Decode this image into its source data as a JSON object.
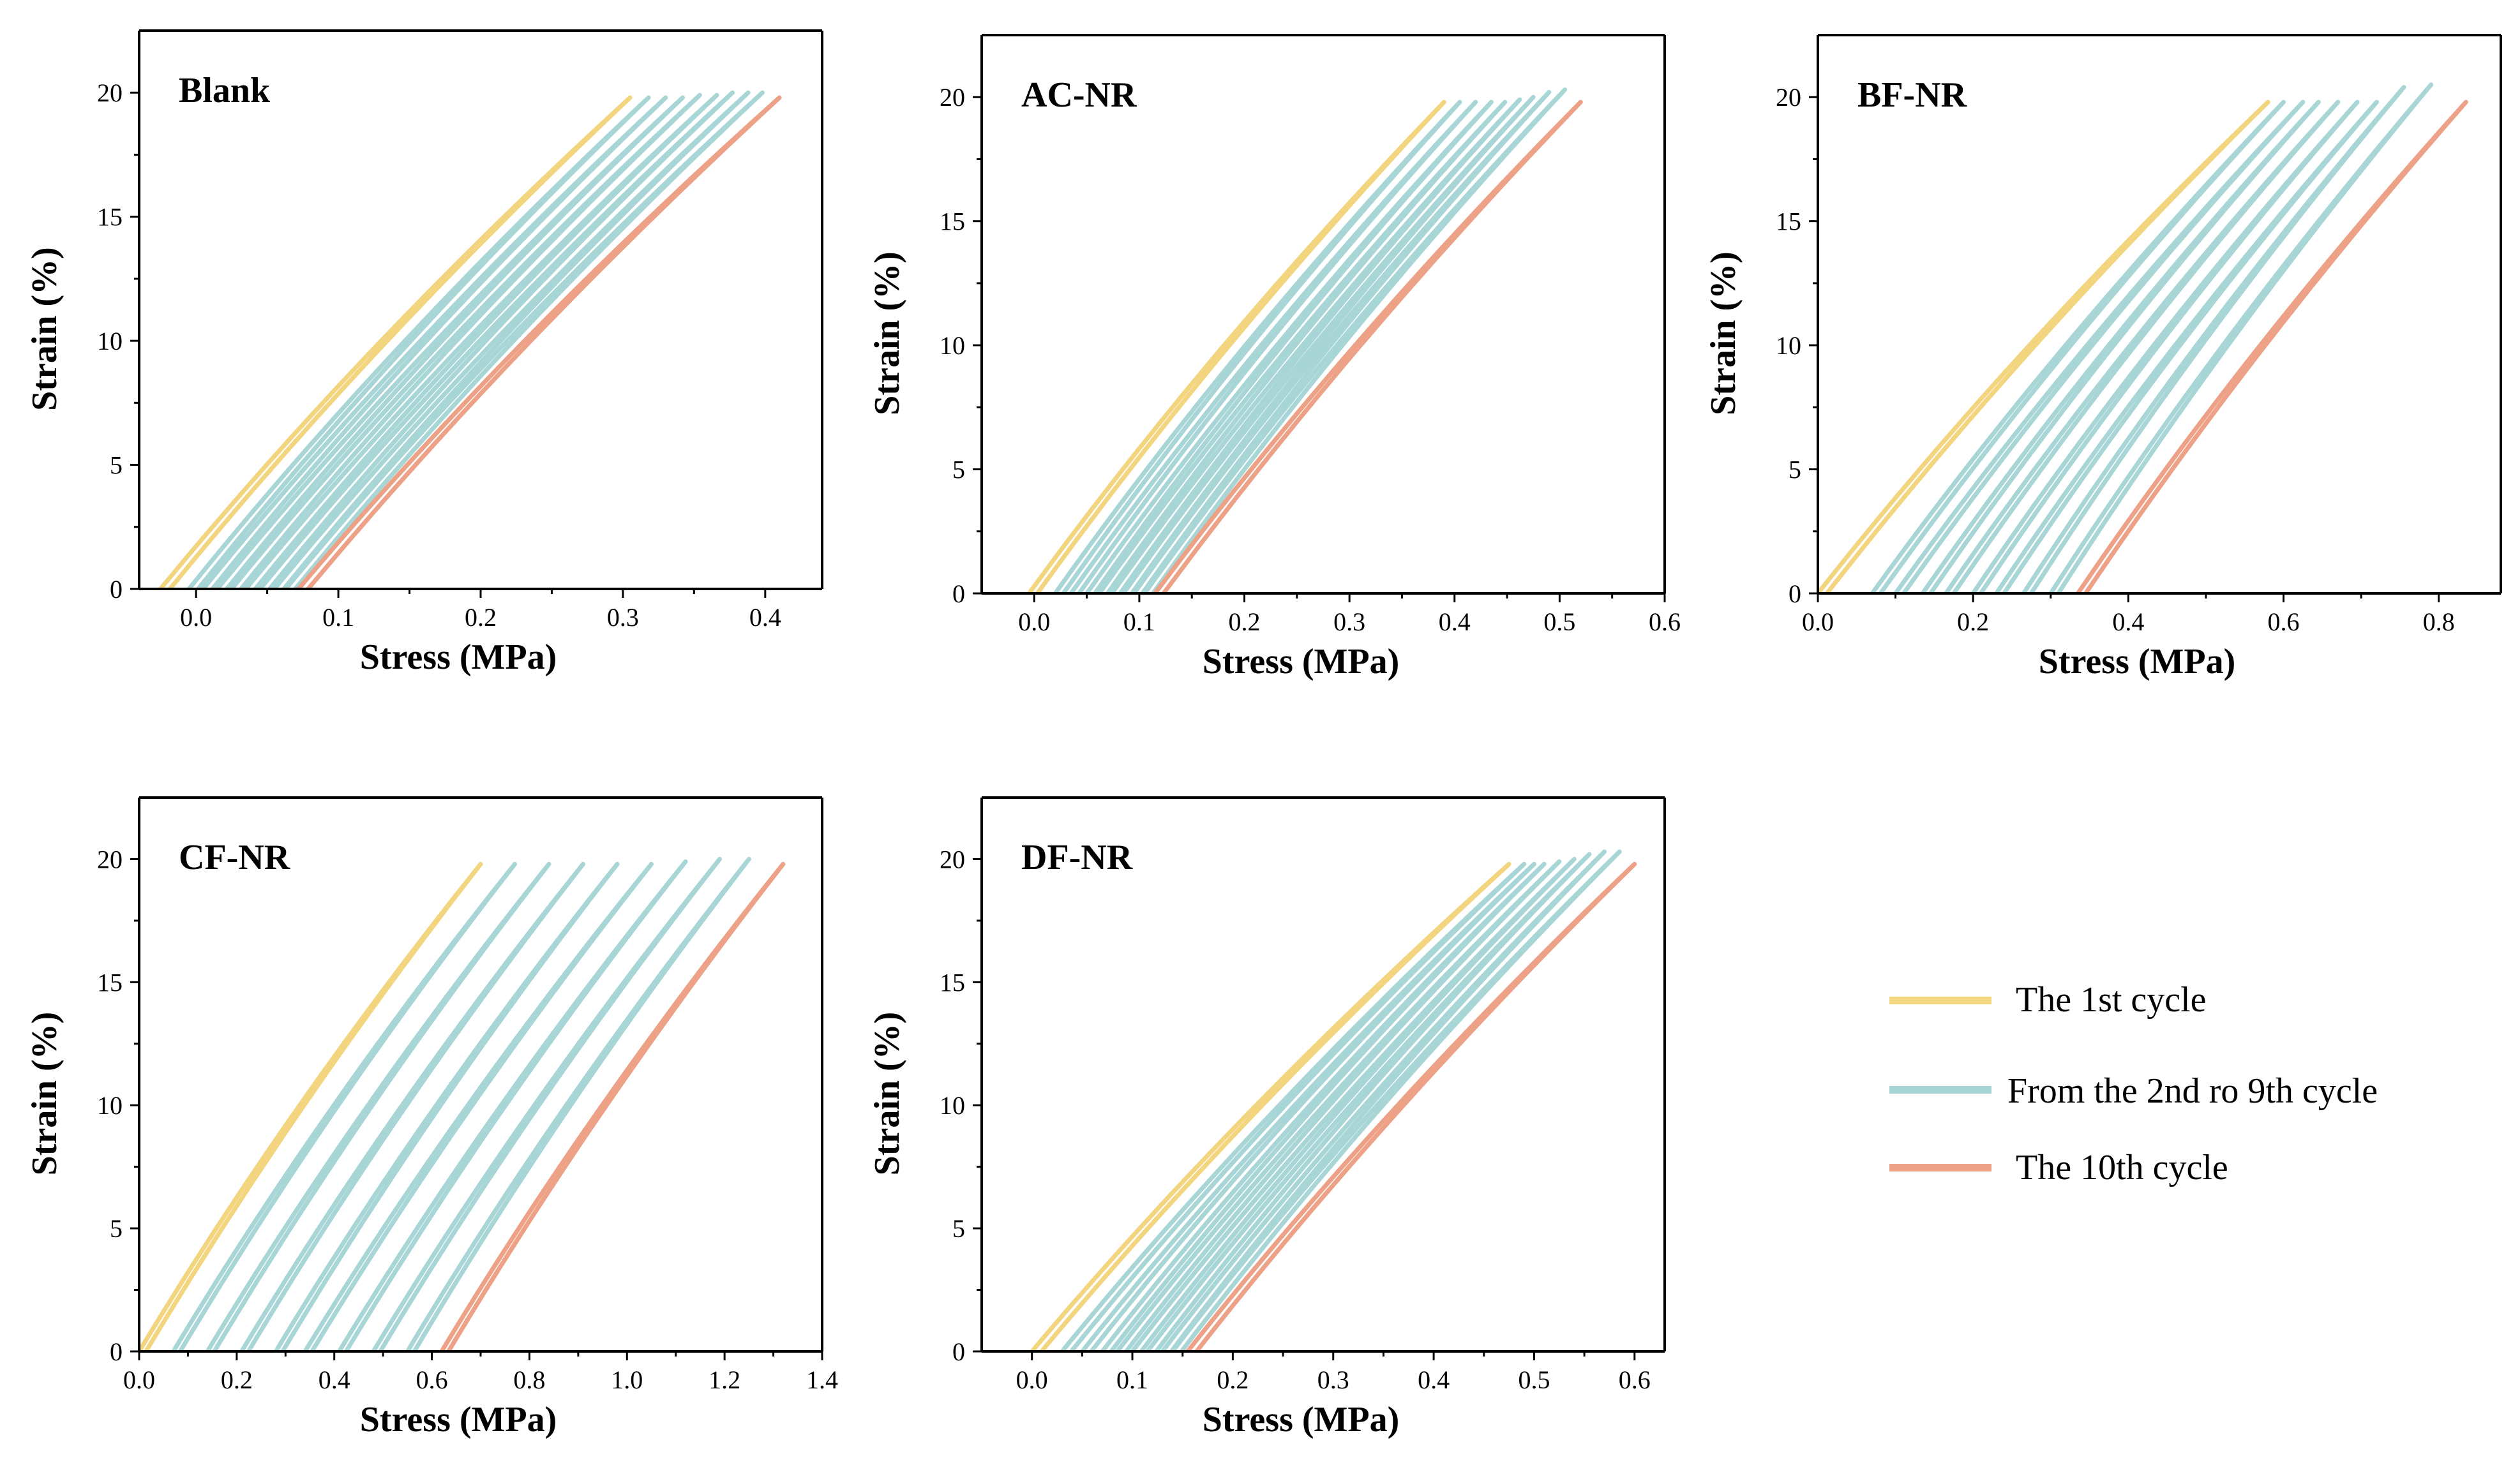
{
  "colors": {
    "first_cycle": "#f2d57e",
    "middle_cycles": "#a8d5d6",
    "last_cycle": "#eda186"
  },
  "legend": {
    "items": [
      {
        "key": "first_cycle",
        "label": "The 1st cycle"
      },
      {
        "key": "middle_cycles",
        "label": "From the 2nd ro 9th cycle"
      },
      {
        "key": "last_cycle",
        "label": "The 10th cycle"
      }
    ]
  },
  "chart_data": [
    {
      "type": "line",
      "title": "Blank",
      "xlabel": "Stress (MPa)",
      "ylabel": "Strain (%)",
      "xlim": [
        -0.04,
        0.44
      ],
      "ylim": [
        0,
        22.5
      ],
      "xticks": [
        "0.0",
        "0.1",
        "0.2",
        "0.3",
        "0.4"
      ],
      "xtick_values": [
        0.0,
        0.1,
        0.2,
        0.3,
        0.4
      ],
      "yticks": [
        "0",
        "5",
        "10",
        "15",
        "20"
      ],
      "ytick_values": [
        0,
        5,
        10,
        15,
        20
      ],
      "series": [
        {
          "name": "The 1st cycle",
          "origin_stress": -0.025,
          "peak_stress": 0.305,
          "peak_strain": 19.8
        },
        {
          "name": "Cycle 2",
          "origin_stress": -0.005,
          "peak_stress": 0.318,
          "peak_strain": 19.8
        },
        {
          "name": "Cycle 3",
          "origin_stress": 0.005,
          "peak_stress": 0.33,
          "peak_strain": 19.8
        },
        {
          "name": "Cycle 4",
          "origin_stress": 0.015,
          "peak_stress": 0.342,
          "peak_strain": 19.8
        },
        {
          "name": "Cycle 5",
          "origin_stress": 0.025,
          "peak_stress": 0.354,
          "peak_strain": 19.9
        },
        {
          "name": "Cycle 6",
          "origin_stress": 0.035,
          "peak_stress": 0.366,
          "peak_strain": 19.9
        },
        {
          "name": "Cycle 7",
          "origin_stress": 0.045,
          "peak_stress": 0.377,
          "peak_strain": 20.0
        },
        {
          "name": "Cycle 8",
          "origin_stress": 0.055,
          "peak_stress": 0.388,
          "peak_strain": 20.0
        },
        {
          "name": "Cycle 9",
          "origin_stress": 0.063,
          "peak_stress": 0.398,
          "peak_strain": 20.0
        },
        {
          "name": "The 10th cycle",
          "origin_stress": 0.072,
          "peak_stress": 0.41,
          "peak_strain": 19.8
        }
      ]
    },
    {
      "type": "line",
      "title": "AC-NR",
      "xlabel": "Stress (MPa)",
      "ylabel": "Strain (%)",
      "xlim": [
        -0.05,
        0.6
      ],
      "ylim": [
        0,
        22.5
      ],
      "xticks": [
        "0.0",
        "0.1",
        "0.2",
        "0.3",
        "0.4",
        "0.5",
        "0.6"
      ],
      "xtick_values": [
        0.0,
        0.1,
        0.2,
        0.3,
        0.4,
        0.5,
        0.6
      ],
      "yticks": [
        "0",
        "5",
        "10",
        "15",
        "20"
      ],
      "ytick_values": [
        0,
        5,
        10,
        15,
        20
      ],
      "series": [
        {
          "name": "The 1st cycle",
          "origin_stress": -0.005,
          "peak_stress": 0.39,
          "peak_strain": 19.8
        },
        {
          "name": "Cycle 2",
          "origin_stress": 0.02,
          "peak_stress": 0.405,
          "peak_strain": 19.8
        },
        {
          "name": "Cycle 3",
          "origin_stress": 0.035,
          "peak_stress": 0.42,
          "peak_strain": 19.8
        },
        {
          "name": "Cycle 4",
          "origin_stress": 0.05,
          "peak_stress": 0.435,
          "peak_strain": 19.8
        },
        {
          "name": "Cycle 5",
          "origin_stress": 0.062,
          "peak_stress": 0.448,
          "peak_strain": 19.8
        },
        {
          "name": "Cycle 6",
          "origin_stress": 0.074,
          "peak_stress": 0.462,
          "peak_strain": 19.9
        },
        {
          "name": "Cycle 7",
          "origin_stress": 0.085,
          "peak_stress": 0.475,
          "peak_strain": 20.0
        },
        {
          "name": "Cycle 8",
          "origin_stress": 0.095,
          "peak_stress": 0.49,
          "peak_strain": 20.2
        },
        {
          "name": "Cycle 9",
          "origin_stress": 0.105,
          "peak_stress": 0.505,
          "peak_strain": 20.3
        },
        {
          "name": "The 10th cycle",
          "origin_stress": 0.115,
          "peak_stress": 0.52,
          "peak_strain": 19.8
        }
      ]
    },
    {
      "type": "line",
      "title": "BF-NR",
      "xlabel": "Stress (MPa)",
      "ylabel": "Strain (%)",
      "xlim": [
        0,
        0.88
      ],
      "ylim": [
        0,
        22.5
      ],
      "xticks": [
        "0.0",
        "0.2",
        "0.4",
        "0.6",
        "0.8"
      ],
      "xtick_values": [
        0.0,
        0.2,
        0.4,
        0.6,
        0.8
      ],
      "yticks": [
        "0",
        "5",
        "10",
        "15",
        "20"
      ],
      "ytick_values": [
        0,
        5,
        10,
        15,
        20
      ],
      "series": [
        {
          "name": "The 1st cycle",
          "origin_stress": 0.0,
          "peak_stress": 0.58,
          "peak_strain": 19.8
        },
        {
          "name": "Cycle 2",
          "origin_stress": 0.07,
          "peak_stress": 0.6,
          "peak_strain": 19.8
        },
        {
          "name": "Cycle 3",
          "origin_stress": 0.1,
          "peak_stress": 0.625,
          "peak_strain": 19.8
        },
        {
          "name": "Cycle 4",
          "origin_stress": 0.135,
          "peak_stress": 0.645,
          "peak_strain": 19.8
        },
        {
          "name": "Cycle 5",
          "origin_stress": 0.165,
          "peak_stress": 0.67,
          "peak_strain": 19.8
        },
        {
          "name": "Cycle 6",
          "origin_stress": 0.2,
          "peak_stress": 0.695,
          "peak_strain": 19.8
        },
        {
          "name": "Cycle 7",
          "origin_stress": 0.23,
          "peak_stress": 0.72,
          "peak_strain": 19.8
        },
        {
          "name": "Cycle 8",
          "origin_stress": 0.265,
          "peak_stress": 0.755,
          "peak_strain": 20.4
        },
        {
          "name": "Cycle 9",
          "origin_stress": 0.3,
          "peak_stress": 0.79,
          "peak_strain": 20.5
        },
        {
          "name": "The 10th cycle",
          "origin_stress": 0.335,
          "peak_stress": 0.835,
          "peak_strain": 19.8
        }
      ]
    },
    {
      "type": "line",
      "title": "CF-NR",
      "xlabel": "Stress (MPa)",
      "ylabel": "Strain (%)",
      "xlim": [
        0,
        1.4
      ],
      "ylim": [
        0,
        22.5
      ],
      "xticks": [
        "0.0",
        "0.2",
        "0.4",
        "0.6",
        "0.8",
        "1.0",
        "1.2",
        "1.4"
      ],
      "xtick_values": [
        0.0,
        0.2,
        0.4,
        0.6,
        0.8,
        1.0,
        1.2,
        1.4
      ],
      "yticks": [
        "0",
        "5",
        "10",
        "15",
        "20"
      ],
      "ytick_values": [
        0,
        5,
        10,
        15,
        20
      ],
      "series": [
        {
          "name": "The 1st cycle",
          "origin_stress": 0.0,
          "peak_stress": 0.7,
          "peak_strain": 19.8
        },
        {
          "name": "Cycle 2",
          "origin_stress": 0.07,
          "peak_stress": 0.77,
          "peak_strain": 19.8
        },
        {
          "name": "Cycle 3",
          "origin_stress": 0.14,
          "peak_stress": 0.84,
          "peak_strain": 19.8
        },
        {
          "name": "Cycle 4",
          "origin_stress": 0.21,
          "peak_stress": 0.91,
          "peak_strain": 19.8
        },
        {
          "name": "Cycle 5",
          "origin_stress": 0.28,
          "peak_stress": 0.98,
          "peak_strain": 19.8
        },
        {
          "name": "Cycle 6",
          "origin_stress": 0.34,
          "peak_stress": 1.05,
          "peak_strain": 19.8
        },
        {
          "name": "Cycle 7",
          "origin_stress": 0.41,
          "peak_stress": 1.12,
          "peak_strain": 19.9
        },
        {
          "name": "Cycle 8",
          "origin_stress": 0.48,
          "peak_stress": 1.19,
          "peak_strain": 20.0
        },
        {
          "name": "Cycle 9",
          "origin_stress": 0.55,
          "peak_stress": 1.25,
          "peak_strain": 20.0
        },
        {
          "name": "The 10th cycle",
          "origin_stress": 0.62,
          "peak_stress": 1.32,
          "peak_strain": 19.8
        }
      ]
    },
    {
      "type": "line",
      "title": "DF-NR",
      "xlabel": "Stress (MPa)",
      "ylabel": "Strain (%)",
      "xlim": [
        -0.05,
        0.63
      ],
      "ylim": [
        0,
        22.5
      ],
      "xticks": [
        "0.0",
        "0.1",
        "0.2",
        "0.3",
        "0.4",
        "0.5",
        "0.6"
      ],
      "xtick_values": [
        0.0,
        0.1,
        0.2,
        0.3,
        0.4,
        0.5,
        0.6
      ],
      "yticks": [
        "0",
        "5",
        "10",
        "15",
        "20"
      ],
      "ytick_values": [
        0,
        5,
        10,
        15,
        20
      ],
      "series": [
        {
          "name": "The 1st cycle",
          "origin_stress": 0.0,
          "peak_stress": 0.475,
          "peak_strain": 19.8
        },
        {
          "name": "Cycle 2",
          "origin_stress": 0.03,
          "peak_stress": 0.49,
          "peak_strain": 19.8
        },
        {
          "name": "Cycle 3",
          "origin_stress": 0.05,
          "peak_stress": 0.5,
          "peak_strain": 19.8
        },
        {
          "name": "Cycle 4",
          "origin_stress": 0.07,
          "peak_stress": 0.51,
          "peak_strain": 19.8
        },
        {
          "name": "Cycle 5",
          "origin_stress": 0.085,
          "peak_stress": 0.525,
          "peak_strain": 19.9
        },
        {
          "name": "Cycle 6",
          "origin_stress": 0.1,
          "peak_stress": 0.54,
          "peak_strain": 20.0
        },
        {
          "name": "Cycle 7",
          "origin_stress": 0.115,
          "peak_stress": 0.555,
          "peak_strain": 20.2
        },
        {
          "name": "Cycle 8",
          "origin_stress": 0.13,
          "peak_stress": 0.57,
          "peak_strain": 20.3
        },
        {
          "name": "Cycle 9",
          "origin_stress": 0.14,
          "peak_stress": 0.585,
          "peak_strain": 20.3
        },
        {
          "name": "The 10th cycle",
          "origin_stress": 0.155,
          "peak_stress": 0.6,
          "peak_strain": 19.8
        }
      ]
    }
  ]
}
